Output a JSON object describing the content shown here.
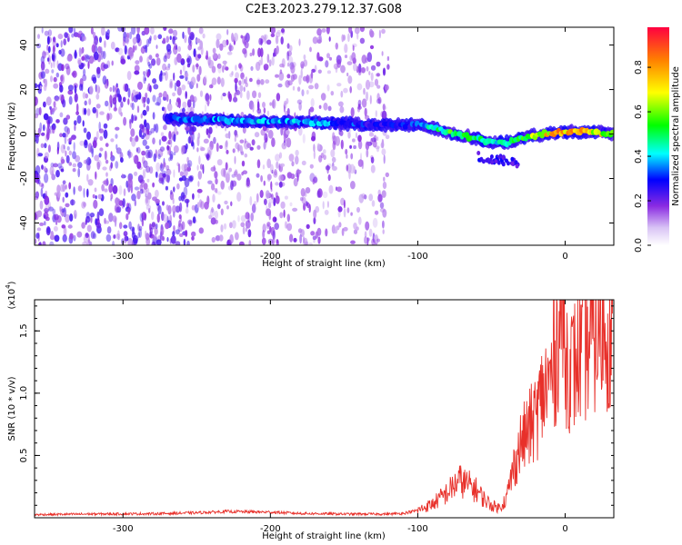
{
  "title": "C2E3.2023.279.12.37.G08",
  "colors": {
    "snr_line": "#e8302a",
    "speckle": "#8a2be2"
  },
  "chart_data": [
    {
      "type": "heatmap",
      "xlabel": "Height of straight line (km)",
      "ylabel": "Frequency (Hz)",
      "xlim": [
        -360,
        33
      ],
      "ylim": [
        -50,
        48
      ],
      "xticks": [
        -300,
        -200,
        -100,
        0
      ],
      "xtick_labels": [
        "-300",
        "-200",
        "-100",
        "0"
      ],
      "yticks": [
        -40,
        -20,
        0,
        20,
        40
      ],
      "ytick_labels": [
        "-40",
        "-20",
        "0",
        "20",
        "40"
      ],
      "colorbar": {
        "label": "Normalized spectral amplitude",
        "range": [
          0,
          0.98
        ],
        "ticks": [
          0.0,
          0.2,
          0.4,
          0.6,
          0.8
        ],
        "tick_labels": [
          "0.0",
          "0.2",
          "0.4",
          "0.6",
          "0.8"
        ],
        "colormap": "rainbow"
      },
      "ridge": {
        "x": [
          -270,
          -220,
          -160,
          -125,
          -100,
          -90,
          -75,
          -60,
          -50,
          -40,
          -30,
          -15,
          0,
          15,
          33
        ],
        "y": [
          7,
          6,
          5,
          4,
          4,
          3,
          0,
          -2,
          -4,
          -4,
          -2,
          0,
          1,
          1,
          0
        ],
        "peak_amplitude": [
          0.35,
          0.45,
          0.4,
          0.3,
          0.35,
          0.55,
          0.6,
          0.55,
          0.5,
          0.5,
          0.6,
          0.85,
          0.95,
          0.9,
          0.6
        ]
      },
      "noise_segments": [
        {
          "x_range": [
            -360,
            -250
          ],
          "level": 0.12
        },
        {
          "x_range": [
            -250,
            -120
          ],
          "level": 0.08
        }
      ]
    },
    {
      "type": "line",
      "xlabel": "Height of straight line (km)",
      "ylabel": "SNR (10 * v/v)",
      "yscale_note": "(x10",
      "yscale_exp": "4",
      "xlim": [
        -360,
        33
      ],
      "ylim": [
        0,
        17500
      ],
      "xticks": [
        -300,
        -200,
        -100,
        0
      ],
      "xtick_labels": [
        "-300",
        "-200",
        "-100",
        "0"
      ],
      "yticks": [
        5000,
        10000,
        15000
      ],
      "ytick_labels": [
        "0.5",
        "1.0",
        "1.5"
      ],
      "series": [
        {
          "x": [
            -360,
            -320,
            -280,
            -250,
            -230,
            -200,
            -180,
            -150,
            -120,
            -110,
            -100,
            -90,
            -80,
            -72,
            -65,
            -60,
            -55,
            -50,
            -45,
            -40,
            -35,
            -30,
            -25,
            -20,
            -15,
            -10,
            -6,
            -3,
            0,
            5,
            10,
            15,
            20,
            25,
            33
          ],
          "y": [
            250,
            300,
            320,
            400,
            500,
            450,
            350,
            300,
            300,
            350,
            600,
            1100,
            2000,
            3000,
            2600,
            2200,
            1500,
            1000,
            800,
            1500,
            4000,
            6000,
            7000,
            8000,
            10000,
            11000,
            13500,
            17500,
            13000,
            12000,
            13000,
            14000,
            14700,
            15200,
            15500
          ]
        }
      ]
    }
  ]
}
